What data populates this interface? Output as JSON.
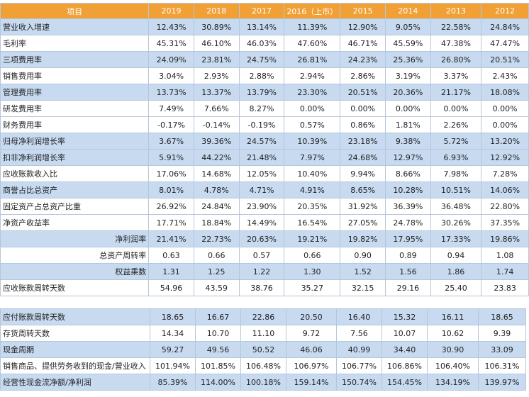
{
  "header": {
    "label": "项目",
    "years": [
      "2019",
      "2018",
      "2017",
      "2016（上市）",
      "2015",
      "2014",
      "2013",
      "2012"
    ]
  },
  "table1": [
    {
      "label": "营业收入增速",
      "values": [
        "12.43%",
        "30.89%",
        "13.14%",
        "11.39%",
        "12.90%",
        "9.05%",
        "22.58%",
        "24.84%"
      ]
    },
    {
      "label": "毛利率",
      "values": [
        "45.31%",
        "46.10%",
        "46.03%",
        "47.60%",
        "46.71%",
        "45.59%",
        "47.38%",
        "47.47%"
      ]
    },
    {
      "label": "三项费用率",
      "values": [
        "24.09%",
        "23.81%",
        "24.75%",
        "26.81%",
        "24.23%",
        "25.36%",
        "26.80%",
        "20.51%"
      ]
    },
    {
      "label": "销售费用率",
      "values": [
        "3.04%",
        "2.93%",
        "2.88%",
        "2.94%",
        "2.86%",
        "3.19%",
        "3.37%",
        "2.43%"
      ]
    },
    {
      "label": "管理费用率",
      "values": [
        "13.73%",
        "13.37%",
        "13.79%",
        "23.30%",
        "20.51%",
        "20.36%",
        "21.17%",
        "18.08%"
      ]
    },
    {
      "label": "研发费用率",
      "values": [
        "7.49%",
        "7.66%",
        "8.27%",
        "0.00%",
        "0.00%",
        "0.00%",
        "0.00%",
        "0.00%"
      ]
    },
    {
      "label": "财务费用率",
      "values": [
        "-0.17%",
        "-0.14%",
        "-0.19%",
        "0.57%",
        "0.86%",
        "1.81%",
        "2.26%",
        "0.00%"
      ]
    },
    {
      "label": "归母净利润增长率",
      "values": [
        "3.67%",
        "39.36%",
        "24.57%",
        "10.39%",
        "23.18%",
        "9.38%",
        "5.72%",
        "13.20%"
      ]
    },
    {
      "label": "扣非净利润增长率",
      "values": [
        "5.91%",
        "44.22%",
        "21.48%",
        "7.97%",
        "24.68%",
        "12.97%",
        "6.93%",
        "12.92%"
      ]
    },
    {
      "label": "应收账款收入比",
      "values": [
        "17.06%",
        "14.68%",
        "12.05%",
        "10.40%",
        "9.94%",
        "8.66%",
        "7.98%",
        "7.28%"
      ]
    },
    {
      "label": "商誉占比总资产",
      "values": [
        "8.01%",
        "4.78%",
        "4.71%",
        "4.91%",
        "8.65%",
        "10.28%",
        "10.51%",
        "14.06%"
      ]
    },
    {
      "label": "固定资产占总资产比重",
      "values": [
        "26.92%",
        "24.84%",
        "23.90%",
        "20.35%",
        "31.92%",
        "36.39%",
        "36.48%",
        "22.80%"
      ]
    },
    {
      "label": "净资产收益率",
      "values": [
        "17.71%",
        "18.84%",
        "14.49%",
        "16.54%",
        "27.05%",
        "24.78%",
        "30.26%",
        "37.35%"
      ]
    },
    {
      "label": "净利润率",
      "values": [
        "21.41%",
        "22.73%",
        "20.63%",
        "19.21%",
        "19.82%",
        "17.95%",
        "17.33%",
        "19.86%"
      ]
    },
    {
      "label": "总资产周转率",
      "values": [
        "0.63",
        "0.66",
        "0.57",
        "0.66",
        "0.90",
        "0.89",
        "0.94",
        "1.08"
      ]
    },
    {
      "label": "权益乘数",
      "values": [
        "1.31",
        "1.25",
        "1.22",
        "1.30",
        "1.52",
        "1.56",
        "1.86",
        "1.74"
      ]
    },
    {
      "label": "应收账款周转天数",
      "values": [
        "54.96",
        "43.59",
        "38.76",
        "35.27",
        "32.15",
        "29.16",
        "25.40",
        "23.83"
      ]
    }
  ],
  "table2": [
    {
      "label": "应付账款周转天数",
      "values": [
        "18.65",
        "16.67",
        "22.86",
        "20.50",
        "16.40",
        "15.32",
        "16.11",
        "18.65"
      ]
    },
    {
      "label": "存货周转天数",
      "values": [
        "14.34",
        "10.70",
        "11.10",
        "9.72",
        "7.56",
        "10.07",
        "10.62",
        "9.39"
      ]
    },
    {
      "label": "现金周期",
      "values": [
        "59.27",
        "49.56",
        "50.52",
        "46.06",
        "40.99",
        "34.40",
        "30.90",
        "33.09"
      ]
    },
    {
      "label": "销售商品、提供劳务收到的现金/营业收入",
      "values": [
        "101.94%",
        "101.85%",
        "106.48%",
        "106.97%",
        "106.77%",
        "106.86%",
        "106.40%",
        "106.31%"
      ]
    },
    {
      "label": "经营性现金流净额/净利润",
      "values": [
        "85.39%",
        "114.00%",
        "100.18%",
        "159.14%",
        "150.74%",
        "154.45%",
        "134.19%",
        "139.97%"
      ]
    }
  ]
}
